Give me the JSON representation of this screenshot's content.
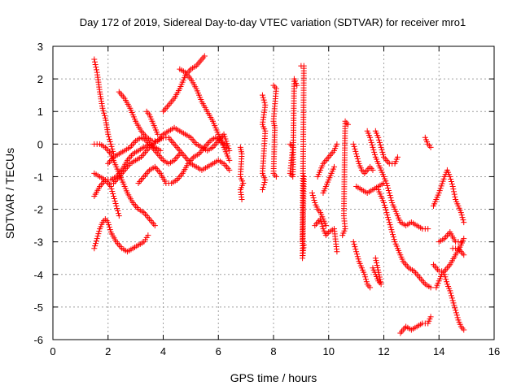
{
  "chart_data": {
    "type": "scatter",
    "title": "Day 172 of 2019, Sidereal Day-to-day VTEC variation (SDTVAR) for receiver mro1",
    "xlabel": "GPS time / hours",
    "ylabel": "SDTVAR / TECUs",
    "xlim": [
      0,
      16
    ],
    "ylim": [
      -6,
      3
    ],
    "xticks": [
      0,
      2,
      4,
      6,
      8,
      10,
      12,
      14,
      16
    ],
    "yticks": [
      3,
      2,
      1,
      0,
      -1,
      -2,
      -3,
      -4,
      -5,
      -6
    ],
    "grid": true,
    "marker": "plus",
    "color": "#ff0000",
    "tracks": [
      [
        [
          1.5,
          2.6
        ],
        [
          1.6,
          2.2
        ],
        [
          1.7,
          1.6
        ],
        [
          1.8,
          1.1
        ],
        [
          1.9,
          0.8
        ],
        [
          2.0,
          0.3
        ],
        [
          2.1,
          0.0
        ],
        [
          2.2,
          -0.3
        ]
      ],
      [
        [
          1.5,
          -0.9
        ],
        [
          1.7,
          -1.0
        ],
        [
          1.9,
          -1.1
        ],
        [
          2.1,
          -1.3
        ],
        [
          2.2,
          -1.6
        ],
        [
          2.3,
          -1.9
        ],
        [
          2.4,
          -2.2
        ]
      ],
      [
        [
          1.5,
          0.0
        ],
        [
          1.7,
          0.0
        ],
        [
          1.9,
          -0.1
        ],
        [
          2.1,
          -0.3
        ],
        [
          2.3,
          -0.7
        ],
        [
          2.5,
          -1.1
        ],
        [
          2.7,
          -1.5
        ],
        [
          2.9,
          -1.8
        ],
        [
          3.1,
          -2.0
        ],
        [
          3.3,
          -2.1
        ],
        [
          3.5,
          -2.3
        ],
        [
          3.7,
          -2.5
        ]
      ],
      [
        [
          1.5,
          -3.2
        ],
        [
          1.6,
          -2.9
        ],
        [
          1.7,
          -2.6
        ],
        [
          1.8,
          -2.4
        ],
        [
          1.9,
          -2.3
        ],
        [
          2.0,
          -2.4
        ],
        [
          2.1,
          -2.7
        ],
        [
          2.3,
          -3.0
        ],
        [
          2.5,
          -3.2
        ],
        [
          2.7,
          -3.3
        ],
        [
          2.9,
          -3.2
        ],
        [
          3.1,
          -3.1
        ],
        [
          3.3,
          -3.0
        ],
        [
          3.45,
          -2.8
        ]
      ],
      [
        [
          1.5,
          -1.6
        ],
        [
          1.7,
          -1.3
        ],
        [
          1.9,
          -1.1
        ],
        [
          2.1,
          -1.1
        ],
        [
          2.3,
          -1.0
        ],
        [
          2.5,
          -0.8
        ],
        [
          2.7,
          -0.5
        ],
        [
          2.9,
          -0.3
        ],
        [
          3.1,
          -0.2
        ],
        [
          3.3,
          -0.1
        ],
        [
          3.5,
          0.0
        ],
        [
          3.7,
          -0.1
        ],
        [
          3.9,
          -0.2
        ]
      ],
      [
        [
          2.0,
          -0.6
        ],
        [
          2.2,
          -0.4
        ],
        [
          2.4,
          -0.3
        ],
        [
          2.6,
          -0.2
        ],
        [
          2.8,
          -0.1
        ],
        [
          3.0,
          0.1
        ],
        [
          3.2,
          0.2
        ],
        [
          3.4,
          0.1
        ],
        [
          3.6,
          -0.1
        ],
        [
          3.8,
          -0.3
        ],
        [
          4.0,
          -0.5
        ],
        [
          4.2,
          -0.6
        ],
        [
          4.4,
          -0.5
        ],
        [
          4.6,
          -0.3
        ]
      ],
      [
        [
          2.2,
          -1.2
        ],
        [
          2.4,
          -1.0
        ],
        [
          2.6,
          -0.8
        ],
        [
          2.8,
          -0.6
        ],
        [
          3.0,
          -0.5
        ],
        [
          3.2,
          -0.4
        ],
        [
          3.4,
          -0.2
        ],
        [
          3.6,
          0.0
        ],
        [
          3.8,
          0.1
        ],
        [
          4.0,
          0.3
        ],
        [
          4.2,
          0.4
        ],
        [
          4.4,
          0.5
        ],
        [
          4.6,
          0.4
        ],
        [
          4.8,
          0.3
        ],
        [
          5.0,
          0.2
        ],
        [
          5.2,
          0.0
        ],
        [
          5.4,
          -0.1
        ],
        [
          5.6,
          -0.2
        ],
        [
          5.8,
          -0.1
        ],
        [
          6.0,
          0.1
        ],
        [
          6.2,
          0.3
        ],
        [
          6.4,
          -0.2
        ]
      ],
      [
        [
          2.4,
          1.6
        ],
        [
          2.6,
          1.4
        ],
        [
          2.8,
          1.1
        ],
        [
          3.0,
          0.7
        ],
        [
          3.2,
          0.4
        ],
        [
          3.4,
          0.2
        ],
        [
          3.6,
          0.1
        ],
        [
          3.8,
          0.1
        ],
        [
          4.0,
          0.2
        ],
        [
          4.2,
          0.2
        ],
        [
          4.4,
          0.0
        ],
        [
          4.6,
          -0.2
        ],
        [
          4.8,
          -0.4
        ],
        [
          5.0,
          -0.6
        ],
        [
          5.2,
          -0.7
        ],
        [
          5.4,
          -0.8
        ],
        [
          5.6,
          -0.7
        ],
        [
          5.8,
          -0.6
        ],
        [
          6.0,
          -0.5
        ],
        [
          6.2,
          -0.6
        ],
        [
          6.4,
          -0.8
        ]
      ],
      [
        [
          3.1,
          -1.2
        ],
        [
          3.3,
          -1.0
        ],
        [
          3.5,
          -0.8
        ],
        [
          3.7,
          -0.7
        ],
        [
          3.9,
          -0.9
        ],
        [
          4.1,
          -1.2
        ],
        [
          4.3,
          -1.2
        ],
        [
          4.5,
          -1.1
        ],
        [
          4.7,
          -0.9
        ],
        [
          4.9,
          -0.6
        ],
        [
          5.1,
          -0.4
        ],
        [
          5.3,
          -0.3
        ],
        [
          5.5,
          -0.1
        ],
        [
          5.7,
          0.1
        ],
        [
          5.9,
          0.2
        ],
        [
          6.1,
          0.1
        ],
        [
          6.3,
          -0.1
        ]
      ],
      [
        [
          3.4,
          1.0
        ],
        [
          3.5,
          0.9
        ],
        [
          3.6,
          0.7
        ],
        [
          3.7,
          0.5
        ],
        [
          3.8,
          0.3
        ]
      ],
      [
        [
          4.0,
          1.0
        ],
        [
          4.2,
          1.2
        ],
        [
          4.4,
          1.4
        ],
        [
          4.6,
          1.7
        ],
        [
          4.8,
          2.1
        ],
        [
          5.0,
          2.3
        ],
        [
          5.2,
          2.4
        ],
        [
          5.4,
          2.6
        ],
        [
          5.5,
          2.7
        ]
      ],
      [
        [
          4.6,
          2.3
        ],
        [
          4.8,
          2.2
        ],
        [
          5.0,
          2.0
        ],
        [
          5.2,
          1.7
        ],
        [
          5.4,
          1.3
        ],
        [
          5.6,
          1.0
        ],
        [
          5.8,
          0.7
        ],
        [
          6.0,
          0.3
        ],
        [
          6.2,
          -0.1
        ],
        [
          6.4,
          -0.5
        ]
      ],
      [
        [
          6.8,
          -0.1
        ],
        [
          6.85,
          -0.3
        ],
        [
          6.8,
          -1.0
        ],
        [
          6.9,
          -1.2
        ],
        [
          6.8,
          -1.4
        ],
        [
          6.85,
          -1.7
        ]
      ],
      [
        [
          7.6,
          1.5
        ],
        [
          7.7,
          1.2
        ],
        [
          7.6,
          0.6
        ],
        [
          7.7,
          0.4
        ],
        [
          7.6,
          -0.9
        ],
        [
          7.7,
          -1.1
        ],
        [
          7.6,
          -1.4
        ]
      ],
      [
        [
          8.0,
          1.8
        ],
        [
          8.1,
          1.7
        ],
        [
          8.0,
          0.7
        ],
        [
          8.05,
          0.5
        ],
        [
          8.0,
          -0.9
        ],
        [
          8.1,
          -1.0
        ]
      ],
      [
        [
          8.6,
          0.0
        ],
        [
          8.7,
          -0.1
        ],
        [
          8.65,
          -0.5
        ],
        [
          8.6,
          -0.9
        ],
        [
          8.7,
          -1.0
        ],
        [
          8.75,
          2.0
        ],
        [
          8.85,
          1.8
        ]
      ],
      [
        [
          9.0,
          2.4
        ],
        [
          9.1,
          2.4
        ],
        [
          9.05,
          -3.0
        ],
        [
          9.1,
          -3.1
        ],
        [
          9.05,
          -3.5
        ],
        [
          9.1,
          -1.0
        ]
      ],
      [
        [
          9.4,
          -1.5
        ],
        [
          9.5,
          -1.8
        ],
        [
          9.6,
          -2.0
        ],
        [
          9.7,
          -2.1
        ],
        [
          9.8,
          -2.3
        ],
        [
          9.9,
          -2.5
        ]
      ],
      [
        [
          9.5,
          -2.5
        ],
        [
          9.6,
          -2.4
        ],
        [
          9.7,
          -2.3
        ],
        [
          9.8,
          -2.6
        ],
        [
          9.9,
          -2.8
        ],
        [
          10.0,
          -2.7
        ],
        [
          10.2,
          -2.6
        ],
        [
          10.3,
          -3.3
        ]
      ],
      [
        [
          9.6,
          -1.0
        ],
        [
          9.7,
          -0.8
        ],
        [
          9.8,
          -0.6
        ],
        [
          9.9,
          -0.5
        ],
        [
          10.0,
          -0.4
        ],
        [
          10.1,
          -0.3
        ],
        [
          10.2,
          -0.2
        ],
        [
          10.3,
          0.0
        ]
      ],
      [
        [
          9.8,
          -1.5
        ],
        [
          9.9,
          -1.3
        ],
        [
          10.0,
          -1.1
        ],
        [
          10.1,
          -0.9
        ],
        [
          10.2,
          -0.7
        ]
      ],
      [
        [
          10.5,
          -2.8
        ],
        [
          10.6,
          -2.6
        ],
        [
          10.55,
          -2.2
        ],
        [
          10.6,
          0.7
        ],
        [
          10.7,
          0.6
        ]
      ],
      [
        [
          10.9,
          0.0
        ],
        [
          11.0,
          -0.3
        ],
        [
          11.1,
          -0.6
        ],
        [
          11.2,
          -0.8
        ],
        [
          11.3,
          -0.9
        ],
        [
          11.4,
          -0.8
        ],
        [
          11.5,
          -0.7
        ],
        [
          11.6,
          -0.8
        ]
      ],
      [
        [
          10.9,
          -3.0
        ],
        [
          11.0,
          -3.3
        ],
        [
          11.1,
          -3.6
        ],
        [
          11.2,
          -3.8
        ],
        [
          11.3,
          -4.0
        ],
        [
          11.4,
          -4.3
        ],
        [
          11.5,
          -4.4
        ]
      ],
      [
        [
          11.0,
          -1.3
        ],
        [
          11.2,
          -1.4
        ],
        [
          11.4,
          -1.5
        ],
        [
          11.6,
          -1.4
        ],
        [
          11.8,
          -1.3
        ],
        [
          12.0,
          -1.2
        ]
      ],
      [
        [
          11.4,
          0.4
        ],
        [
          11.5,
          0.2
        ],
        [
          11.6,
          -0.1
        ],
        [
          11.7,
          -0.4
        ],
        [
          11.8,
          -0.6
        ],
        [
          11.9,
          -0.8
        ],
        [
          12.0,
          -1.0
        ],
        [
          12.1,
          -1.2
        ],
        [
          12.2,
          -1.5
        ],
        [
          12.3,
          -1.8
        ],
        [
          12.4,
          -2.0
        ],
        [
          12.5,
          -2.2
        ],
        [
          12.6,
          -2.4
        ],
        [
          12.8,
          -2.5
        ],
        [
          13.0,
          -2.4
        ],
        [
          13.2,
          -2.5
        ],
        [
          13.4,
          -2.6
        ],
        [
          13.6,
          -2.6
        ]
      ],
      [
        [
          11.7,
          0.4
        ],
        [
          11.8,
          0.2
        ],
        [
          11.9,
          -0.1
        ],
        [
          12.0,
          -0.4
        ],
        [
          12.2,
          -0.6
        ],
        [
          12.4,
          -0.6
        ],
        [
          12.5,
          -0.4
        ]
      ],
      [
        [
          11.6,
          -3.8
        ],
        [
          11.7,
          -4.0
        ],
        [
          11.8,
          -4.2
        ],
        [
          11.9,
          -4.3
        ],
        [
          11.7,
          -3.5
        ]
      ],
      [
        [
          11.8,
          -1.4
        ],
        [
          11.9,
          -1.6
        ],
        [
          12.0,
          -1.8
        ],
        [
          12.1,
          -2.1
        ],
        [
          12.2,
          -2.4
        ],
        [
          12.3,
          -2.7
        ],
        [
          12.4,
          -3.0
        ],
        [
          12.5,
          -3.2
        ],
        [
          12.6,
          -3.4
        ],
        [
          12.7,
          -3.6
        ],
        [
          12.9,
          -3.8
        ],
        [
          13.1,
          -3.9
        ],
        [
          13.3,
          -4.1
        ],
        [
          13.5,
          -4.3
        ],
        [
          13.7,
          -4.4
        ]
      ],
      [
        [
          12.6,
          -5.8
        ],
        [
          12.8,
          -5.6
        ],
        [
          13.0,
          -5.7
        ],
        [
          13.2,
          -5.6
        ],
        [
          13.4,
          -5.5
        ],
        [
          13.6,
          -5.5
        ],
        [
          13.7,
          -5.3
        ]
      ],
      [
        [
          13.5,
          0.2
        ],
        [
          13.6,
          0.0
        ],
        [
          13.7,
          -0.1
        ]
      ],
      [
        [
          13.8,
          -1.9
        ],
        [
          14.0,
          -1.5
        ],
        [
          14.2,
          -1.0
        ],
        [
          14.3,
          -0.8
        ],
        [
          14.4,
          -1.0
        ],
        [
          14.5,
          -1.3
        ],
        [
          14.6,
          -1.7
        ],
        [
          14.8,
          -2.1
        ],
        [
          14.9,
          -2.4
        ]
      ],
      [
        [
          13.8,
          -3.7
        ],
        [
          14.0,
          -3.9
        ],
        [
          14.2,
          -3.9
        ],
        [
          14.4,
          -3.7
        ],
        [
          14.6,
          -3.4
        ],
        [
          14.8,
          -3.1
        ],
        [
          14.9,
          -2.9
        ]
      ],
      [
        [
          13.9,
          -4.4
        ],
        [
          14.0,
          -4.2
        ],
        [
          14.1,
          -4.0
        ],
        [
          14.2,
          -3.9
        ]
      ],
      [
        [
          14.0,
          -3.0
        ],
        [
          14.2,
          -2.9
        ],
        [
          14.4,
          -2.7
        ],
        [
          14.6,
          -3.0
        ],
        [
          14.8,
          -3.0
        ]
      ],
      [
        [
          14.2,
          -4.0
        ],
        [
          14.3,
          -4.3
        ],
        [
          14.4,
          -4.5
        ],
        [
          14.5,
          -4.8
        ],
        [
          14.6,
          -5.1
        ],
        [
          14.7,
          -5.4
        ],
        [
          14.8,
          -5.6
        ],
        [
          14.9,
          -5.7
        ]
      ],
      [
        [
          14.5,
          -3.2
        ],
        [
          14.7,
          -3.2
        ],
        [
          14.9,
          -3.4
        ]
      ]
    ]
  }
}
